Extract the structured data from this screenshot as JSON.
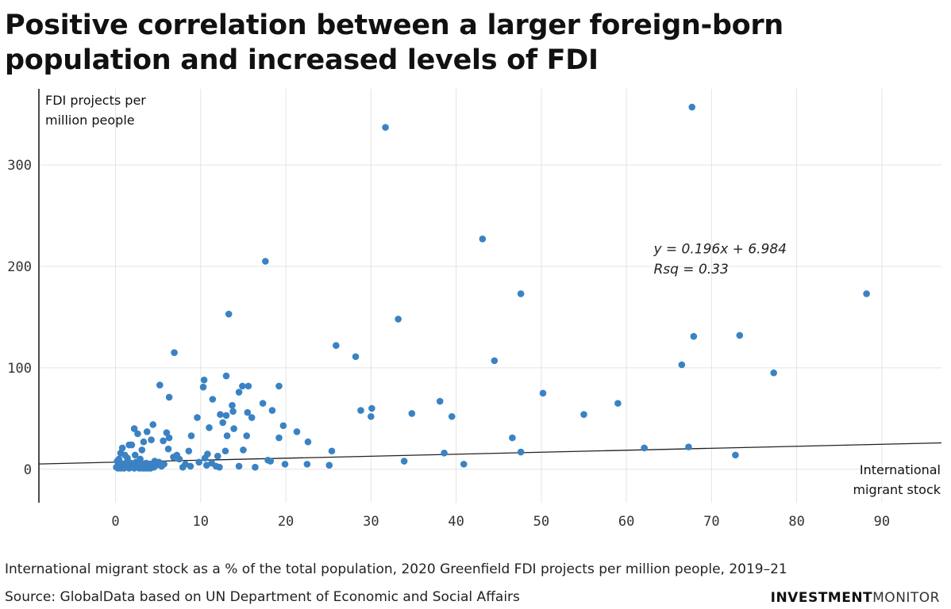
{
  "title": "Positive correlation between a larger foreign-born population and increased levels of FDI",
  "caption": "International migrant stock as a % of the total population, 2020 Greenfield FDI projects per million people, 2019–21",
  "source": "Source: GlobalData based on UN Department of Economic and Social Affairs",
  "brand": {
    "part1": "INVESTMENT",
    "part2": "MONITOR"
  },
  "colors": {
    "point": "#3a82c4",
    "trend": "#222222",
    "grid": "#e4e4e4",
    "axis": "#111111"
  },
  "chart_data": {
    "type": "scatter",
    "title": "Positive correlation between a larger foreign-born population and increased levels of FDI",
    "xlabel_lines": [
      "International",
      "migrant stock"
    ],
    "ylabel_lines": [
      "FDI projects per",
      "million people"
    ],
    "xlim": [
      -9,
      97
    ],
    "ylim": [
      -33,
      375
    ],
    "x_ticks": [
      0,
      10,
      20,
      30,
      40,
      50,
      60,
      70,
      80,
      90
    ],
    "y_ticks": [
      0,
      100,
      200,
      300
    ],
    "grid": true,
    "trendline": {
      "slope": 0.196,
      "intercept": 6.984,
      "equation": "y = 0.196x + 6.984",
      "rsq": "Rsq = 0.33"
    },
    "points": [
      [
        67.7,
        357
      ],
      [
        31.7,
        337
      ],
      [
        43.1,
        227
      ],
      [
        17.6,
        205
      ],
      [
        47.6,
        173
      ],
      [
        88.2,
        173
      ],
      [
        13.3,
        153
      ],
      [
        33.2,
        148
      ],
      [
        67.9,
        131
      ],
      [
        73.3,
        132
      ],
      [
        25.9,
        122
      ],
      [
        6.9,
        115
      ],
      [
        28.2,
        111
      ],
      [
        44.5,
        107
      ],
      [
        66.5,
        103
      ],
      [
        77.3,
        95
      ],
      [
        10.4,
        88
      ],
      [
        5.2,
        83
      ],
      [
        10.3,
        81
      ],
      [
        14.9,
        82
      ],
      [
        15.6,
        82
      ],
      [
        19.2,
        82
      ],
      [
        13.0,
        92
      ],
      [
        50.2,
        75
      ],
      [
        14.5,
        76
      ],
      [
        6.3,
        71
      ],
      [
        11.4,
        69
      ],
      [
        17.3,
        65
      ],
      [
        59.0,
        65
      ],
      [
        13.7,
        63
      ],
      [
        38.1,
        67
      ],
      [
        18.4,
        58
      ],
      [
        28.8,
        58
      ],
      [
        13.8,
        57
      ],
      [
        15.5,
        56
      ],
      [
        30.1,
        60
      ],
      [
        34.8,
        55
      ],
      [
        55.0,
        54
      ],
      [
        39.5,
        52
      ],
      [
        9.6,
        51
      ],
      [
        12.3,
        54
      ],
      [
        13.0,
        53
      ],
      [
        16.0,
        51
      ],
      [
        30.0,
        52
      ],
      [
        12.6,
        46
      ],
      [
        4.4,
        44
      ],
      [
        19.7,
        43
      ],
      [
        21.3,
        37
      ],
      [
        11.0,
        41
      ],
      [
        13.9,
        40
      ],
      [
        15.4,
        33
      ],
      [
        8.9,
        33
      ],
      [
        3.7,
        37
      ],
      [
        2.2,
        40
      ],
      [
        6.0,
        36
      ],
      [
        19.2,
        31
      ],
      [
        46.6,
        31
      ],
      [
        6.3,
        31
      ],
      [
        4.2,
        29
      ],
      [
        3.3,
        27
      ],
      [
        22.6,
        27
      ],
      [
        13.1,
        33
      ],
      [
        2.6,
        35
      ],
      [
        5.6,
        28
      ],
      [
        1.6,
        24
      ],
      [
        1.9,
        24
      ],
      [
        0.8,
        21
      ],
      [
        25.4,
        18
      ],
      [
        12.9,
        18
      ],
      [
        47.6,
        17
      ],
      [
        62.1,
        21
      ],
      [
        67.3,
        22
      ],
      [
        72.8,
        14
      ],
      [
        38.6,
        16
      ],
      [
        6.2,
        20
      ],
      [
        8.6,
        18
      ],
      [
        7.2,
        14
      ],
      [
        6.8,
        12
      ],
      [
        3.1,
        19
      ],
      [
        2.3,
        14
      ],
      [
        1.1,
        14
      ],
      [
        0.6,
        16
      ],
      [
        10.8,
        15
      ],
      [
        12.0,
        13
      ],
      [
        10.5,
        11
      ],
      [
        15.0,
        19
      ],
      [
        17.9,
        9
      ],
      [
        18.2,
        8
      ],
      [
        0.2,
        8
      ],
      [
        0.5,
        7
      ],
      [
        0.9,
        5
      ],
      [
        1.2,
        6
      ],
      [
        1.5,
        4
      ],
      [
        1.8,
        6
      ],
      [
        2.1,
        3
      ],
      [
        2.4,
        7
      ],
      [
        2.7,
        4
      ],
      [
        3.0,
        5
      ],
      [
        3.3,
        2
      ],
      [
        3.6,
        6
      ],
      [
        3.9,
        3
      ],
      [
        4.2,
        5
      ],
      [
        4.5,
        2
      ],
      [
        4.8,
        4
      ],
      [
        5.1,
        7
      ],
      [
        5.4,
        3
      ],
      [
        5.7,
        5
      ],
      [
        0.1,
        2
      ],
      [
        0.3,
        1
      ],
      [
        0.4,
        3
      ],
      [
        0.6,
        1
      ],
      [
        0.8,
        2
      ],
      [
        1.0,
        1
      ],
      [
        1.3,
        2
      ],
      [
        1.6,
        1
      ],
      [
        1.9,
        2
      ],
      [
        2.2,
        1
      ],
      [
        2.5,
        2
      ],
      [
        2.8,
        1
      ],
      [
        3.2,
        1
      ],
      [
        3.5,
        1
      ],
      [
        3.8,
        1
      ],
      [
        4.1,
        1
      ],
      [
        4.4,
        2
      ],
      [
        0.4,
        10
      ],
      [
        1.4,
        11
      ],
      [
        2.9,
        10
      ],
      [
        4.6,
        8
      ],
      [
        7.9,
        2
      ],
      [
        8.2,
        5
      ],
      [
        8.8,
        3
      ],
      [
        10.7,
        4
      ],
      [
        11.3,
        6
      ],
      [
        11.8,
        3
      ],
      [
        12.2,
        2
      ],
      [
        14.5,
        3
      ],
      [
        16.4,
        2
      ],
      [
        19.9,
        5
      ],
      [
        22.5,
        5
      ],
      [
        25.1,
        4
      ],
      [
        33.9,
        8
      ],
      [
        40.9,
        5
      ],
      [
        9.8,
        7
      ],
      [
        7.5,
        10
      ]
    ]
  }
}
